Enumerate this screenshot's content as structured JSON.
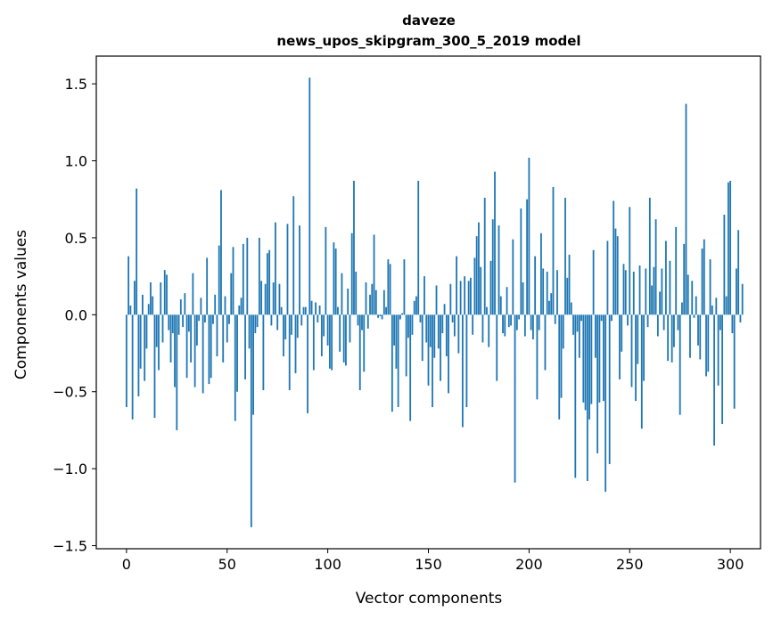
{
  "chart_data": {
    "type": "bar",
    "title_line1": "daveze",
    "title_line2": "news_upos_skipgram_300_5_2019 model",
    "xlabel": "Vector components",
    "ylabel": "Components values",
    "xlim": [
      -15,
      315
    ],
    "ylim": [
      -1.52,
      1.68
    ],
    "xticks": [
      0,
      50,
      100,
      150,
      200,
      250,
      300
    ],
    "xtick_labels": [
      "0",
      "50",
      "100",
      "150",
      "200",
      "250",
      "300"
    ],
    "yticks": [
      -1.5,
      -1.0,
      -0.5,
      0.0,
      0.5,
      1.0,
      1.5
    ],
    "ytick_labels": [
      "−1.5",
      "−1.0",
      "−0.5",
      "0.0",
      "0.5",
      "1.0",
      "1.5"
    ],
    "bar_color": "#1f77b4",
    "values": [
      -0.6,
      0.38,
      0.06,
      -0.68,
      0.22,
      0.82,
      -0.53,
      -0.35,
      0.13,
      -0.43,
      -0.22,
      0.07,
      0.21,
      0.12,
      -0.67,
      -0.21,
      -0.36,
      0.21,
      -0.18,
      0.29,
      0.26,
      -0.1,
      -0.31,
      -0.12,
      -0.47,
      -0.75,
      -0.13,
      0.1,
      -0.08,
      0.14,
      -0.41,
      -0.11,
      -0.31,
      0.27,
      -0.47,
      -0.2,
      -0.04,
      0.11,
      -0.51,
      -0.05,
      0.37,
      -0.45,
      -0.41,
      -0.06,
      0.13,
      -0.27,
      0.45,
      0.81,
      -0.31,
      0.12,
      -0.18,
      -0.06,
      0.27,
      0.44,
      -0.69,
      -0.5,
      0.06,
      0.11,
      0.46,
      -0.42,
      0.5,
      -0.22,
      -1.38,
      -0.65,
      -0.12,
      -0.08,
      0.5,
      0.22,
      -0.49,
      0.2,
      0.4,
      0.42,
      -0.07,
      0.21,
      0.6,
      -0.1,
      0.2,
      0.05,
      -0.27,
      -0.16,
      0.59,
      -0.49,
      -0.13,
      0.77,
      -0.38,
      -0.15,
      0.58,
      -0.07,
      0.05,
      0.05,
      -0.64,
      1.54,
      0.09,
      -0.36,
      0.08,
      -0.05,
      0.06,
      -0.27,
      -0.14,
      0.57,
      -0.2,
      -0.35,
      -0.36,
      0.47,
      0.43,
      0.05,
      -0.24,
      0.27,
      -0.31,
      -0.33,
      0.17,
      -0.18,
      0.53,
      0.87,
      0.28,
      -0.07,
      -0.49,
      -0.1,
      -0.37,
      0.21,
      -0.09,
      0.13,
      0.2,
      0.52,
      0.16,
      -0.02,
      -0.01,
      -0.03,
      0.16,
      0.05,
      0.36,
      0.33,
      -0.63,
      -0.2,
      -0.35,
      -0.6,
      -0.03,
      0.01,
      0.36,
      -0.4,
      -0.15,
      -0.69,
      -0.13,
      0.09,
      0.12,
      0.87,
      -0.05,
      -0.3,
      0.25,
      -0.18,
      -0.46,
      -0.21,
      -0.6,
      -0.28,
      0.19,
      -0.22,
      -0.43,
      -0.12,
      0.07,
      -0.27,
      -0.51,
      0.2,
      -0.05,
      -0.14,
      0.38,
      -0.25,
      0.22,
      -0.73,
      0.25,
      -0.6,
      0.22,
      0.24,
      -0.13,
      0.37,
      0.51,
      0.6,
      0.31,
      -0.18,
      0.76,
      0.05,
      -0.21,
      0.35,
      0.62,
      0.93,
      -0.43,
      0.58,
      0.12,
      -0.12,
      -0.14,
      0.18,
      -0.08,
      -0.07,
      0.49,
      -1.09,
      -0.1,
      -0.03,
      0.69,
      0.21,
      -0.14,
      0.75,
      1.02,
      -0.1,
      -0.16,
      0.38,
      -0.55,
      -0.1,
      0.53,
      0.3,
      -0.36,
      0.28,
      0.09,
      0.14,
      0.83,
      -0.06,
      0.29,
      -0.68,
      -0.54,
      -0.22,
      0.76,
      0.24,
      0.39,
      0.08,
      -0.13,
      -1.06,
      -0.11,
      -0.28,
      -0.04,
      -0.57,
      -0.62,
      -1.08,
      -0.68,
      -0.58,
      0.42,
      -0.28,
      -0.9,
      -0.57,
      -0.04,
      -0.56,
      -1.15,
      0.48,
      -0.97,
      -0.04,
      0.74,
      0.56,
      0.51,
      -0.42,
      -0.24,
      0.33,
      0.29,
      -0.07,
      0.7,
      -0.47,
      0.28,
      -0.56,
      -0.32,
      0.32,
      -0.74,
      -0.43,
      0.3,
      -0.08,
      0.76,
      0.19,
      0.31,
      0.62,
      -0.14,
      0.15,
      0.3,
      -0.1,
      0.48,
      -0.3,
      0.35,
      -0.31,
      -0.21,
      0.57,
      -0.1,
      -0.65,
      0.08,
      0.46,
      1.37,
      0.26,
      -0.28,
      0.22,
      -0.02,
      0.12,
      -0.2,
      -0.29,
      0.43,
      0.49,
      -0.4,
      -0.37,
      0.36,
      0.06,
      -0.85,
      0.11,
      -0.46,
      -0.1,
      -0.71,
      0.65,
      0.12,
      0.86,
      0.87,
      -0.12,
      -0.61,
      0.3,
      0.55,
      -0.05,
      0.2
    ]
  }
}
